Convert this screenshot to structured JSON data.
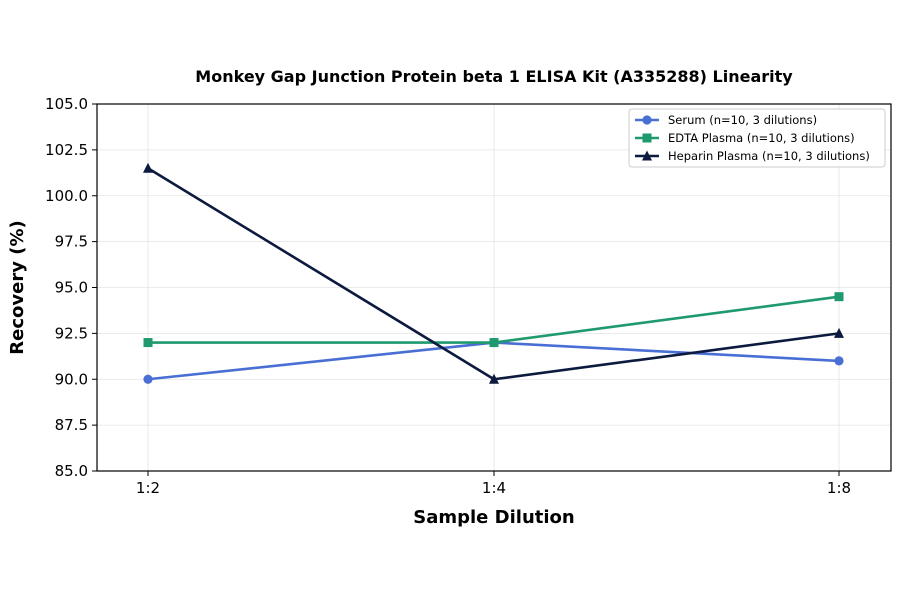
{
  "chart_data": {
    "type": "line",
    "title": "Monkey Gap Junction Protein beta 1 ELISA Kit (A335288) Linearity",
    "xlabel": "Sample Dilution",
    "ylabel": "Recovery (%)",
    "categories": [
      "1:2",
      "1:4",
      "1:8"
    ],
    "ylim": [
      85.0,
      105.0
    ],
    "yticks": [
      "85.0",
      "87.5",
      "90.0",
      "92.5",
      "95.0",
      "97.5",
      "100.0",
      "102.5",
      "105.0"
    ],
    "grid": true,
    "legend_position": "top-right",
    "series": [
      {
        "name": "Serum (n=10, 3 dilutions)",
        "values": [
          90.0,
          92.0,
          91.0
        ],
        "color": "#4a6fd4",
        "marker": "circle"
      },
      {
        "name": "EDTA Plasma (n=10, 3 dilutions)",
        "values": [
          92.0,
          92.0,
          94.5
        ],
        "color": "#1f9a6e",
        "marker": "square"
      },
      {
        "name": "Heparin Plasma (n=10, 3 dilutions)",
        "values": [
          101.5,
          90.0,
          92.5
        ],
        "color": "#0d1a3f",
        "marker": "triangle"
      }
    ]
  }
}
